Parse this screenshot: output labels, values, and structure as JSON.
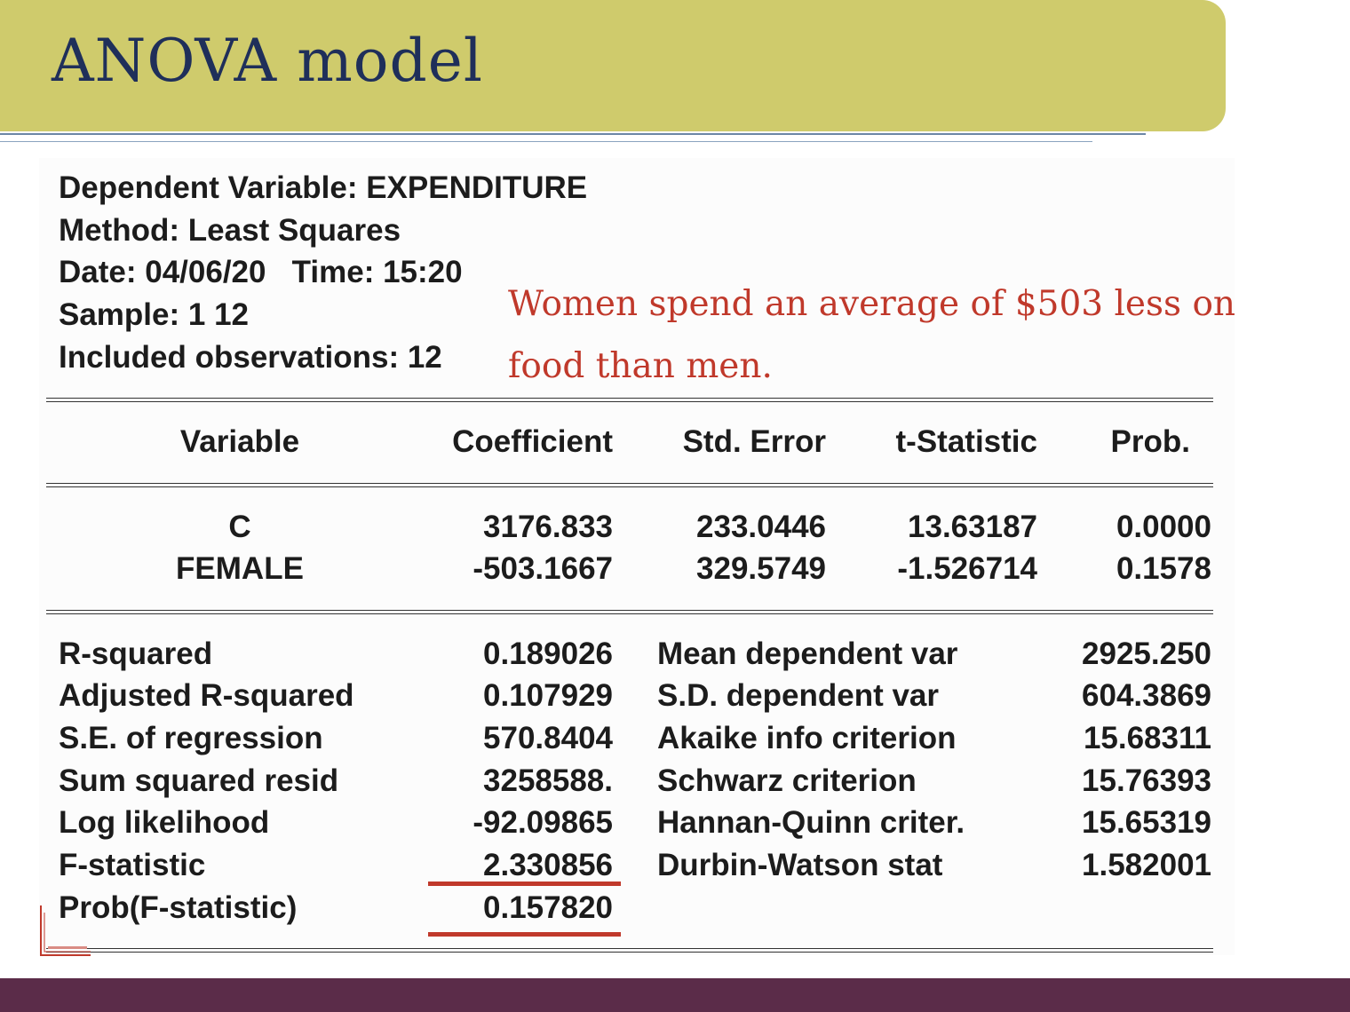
{
  "title": "ANOVA model",
  "header_lines": [
    "Dependent Variable: EXPENDITURE",
    "Method: Least Squares",
    "Date: 04/06/20   Time: 15:20",
    "Sample: 1 12",
    "Included observations: 12"
  ],
  "annotation": {
    "line1": "Women spend an average of $503 less on",
    "line2": "food than men."
  },
  "table": {
    "columns": [
      "Variable",
      "Coefficient",
      "Std. Error",
      "t-Statistic",
      "Prob."
    ],
    "rows": [
      [
        "C",
        "3176.833",
        "233.0446",
        "13.63187",
        "0.0000"
      ],
      [
        "FEMALE",
        "-503.1667",
        "329.5749",
        "-1.526714",
        "0.1578"
      ]
    ]
  },
  "stats": [
    [
      "R-squared",
      "0.189026",
      "Mean dependent var",
      "2925.250"
    ],
    [
      "Adjusted R-squared",
      "0.107929",
      "S.D. dependent var",
      "604.3869"
    ],
    [
      "S.E. of regression",
      "570.8404",
      "Akaike info criterion",
      "15.68311"
    ],
    [
      "Sum squared resid",
      "3258588.",
      "Schwarz criterion",
      "15.76393"
    ],
    [
      "Log likelihood",
      "-92.09865",
      "Hannan-Quinn criter.",
      "15.65319"
    ],
    [
      "F-statistic",
      "2.330856",
      "Durbin-Watson stat",
      "1.582001"
    ],
    [
      "Prob(F-statistic)",
      "0.157820",
      "",
      ""
    ]
  ],
  "colors": {
    "title_bar": "#cfcb6c",
    "title_text": "#1f2f5a",
    "annotation": "#c0392b",
    "highlight": "#c0392b",
    "footer_bar": "#5b2c49"
  }
}
